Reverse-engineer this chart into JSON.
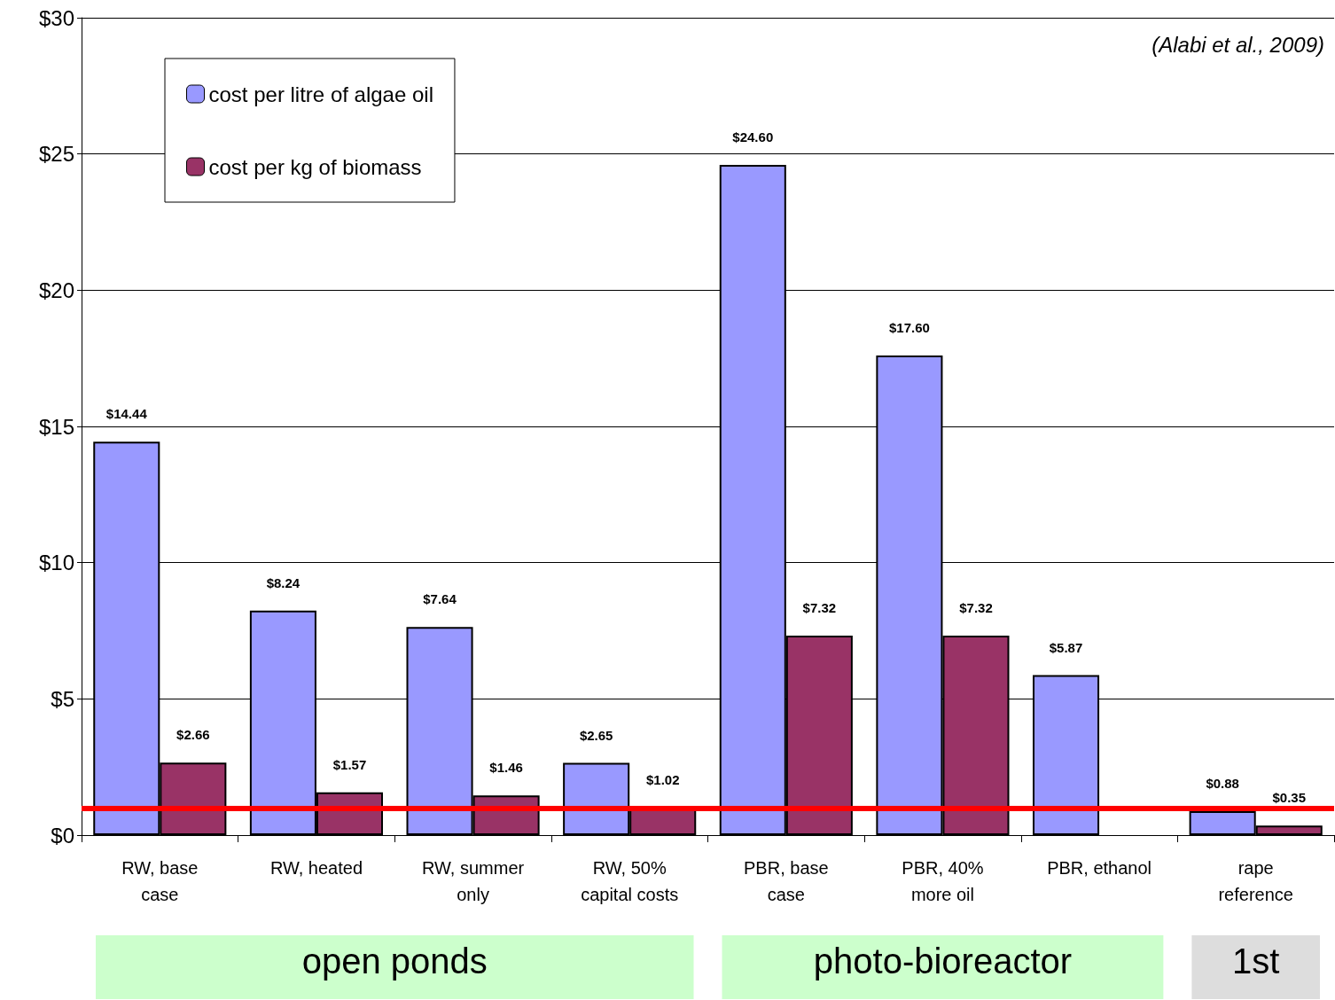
{
  "chart_data": {
    "type": "bar",
    "categories": [
      "RW, base\ncase",
      "RW, heated",
      "RW, summer\nonly",
      "RW, 50%\ncapital costs",
      "PBR, base\ncase",
      "PBR, 40%\nmore oil",
      "PBR, ethanol",
      "rape\nreference"
    ],
    "series": [
      {
        "name": "cost per litre of algae oil",
        "color": "#9999ff",
        "values": [
          14.44,
          8.24,
          7.64,
          2.65,
          24.6,
          17.6,
          5.87,
          0.88
        ],
        "value_labels": [
          "$14.44",
          "$8.24",
          "$7.64",
          "$2.65",
          "$24.60",
          "$17.60",
          "$5.87",
          "$0.88"
        ]
      },
      {
        "name": "cost per kg of biomass",
        "color": "#993366",
        "values": [
          2.66,
          1.57,
          1.46,
          1.02,
          7.32,
          7.32,
          null,
          0.35
        ],
        "value_labels": [
          "$2.66",
          "$1.57",
          "$1.46",
          "$1.02",
          "$7.32",
          "$7.32",
          null,
          "$0.35"
        ]
      }
    ],
    "ylim": [
      0,
      30
    ],
    "yticks": [
      {
        "value": 0,
        "label": "$0"
      },
      {
        "value": 5,
        "label": "$5"
      },
      {
        "value": 10,
        "label": "$10"
      },
      {
        "value": 15,
        "label": "$15"
      },
      {
        "value": 20,
        "label": "$20"
      },
      {
        "value": 25,
        "label": "$25"
      },
      {
        "value": 30,
        "label": "$30"
      }
    ],
    "grid": "y",
    "legend": "top left",
    "ref_lines": [
      {
        "axis": "y",
        "value": 1,
        "color": "#ff0000"
      }
    ],
    "annotations": [
      "(Alabi et al., 2009)",
      "open ponds",
      "photo-bioreactor",
      "1st"
    ]
  }
}
